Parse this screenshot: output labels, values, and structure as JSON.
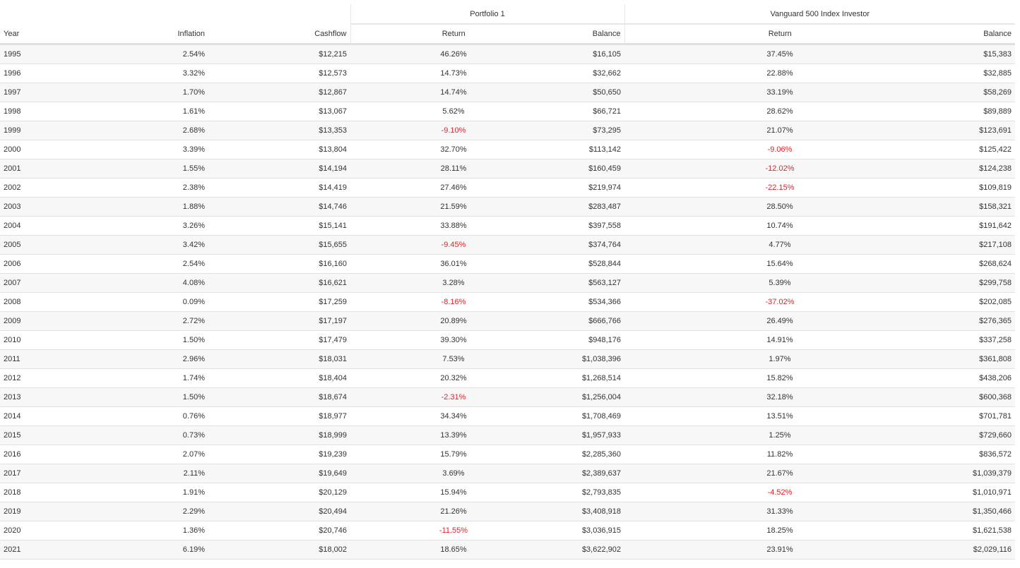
{
  "table": {
    "groups": [
      "Portfolio 1",
      "Vanguard 500 Index Investor"
    ],
    "columns": [
      "Year",
      "Inflation",
      "Cashflow",
      "Return",
      "Balance",
      "Return",
      "Balance"
    ],
    "rows": [
      [
        "1995",
        "2.54%",
        "$12,215",
        "46.26%",
        "$16,105",
        "37.45%",
        "$15,383"
      ],
      [
        "1996",
        "3.32%",
        "$12,573",
        "14.73%",
        "$32,662",
        "22.88%",
        "$32,885"
      ],
      [
        "1997",
        "1.70%",
        "$12,867",
        "14.74%",
        "$50,650",
        "33.19%",
        "$58,269"
      ],
      [
        "1998",
        "1.61%",
        "$13,067",
        "5.62%",
        "$66,721",
        "28.62%",
        "$89,889"
      ],
      [
        "1999",
        "2.68%",
        "$13,353",
        "-9.10%",
        "$73,295",
        "21.07%",
        "$123,691"
      ],
      [
        "2000",
        "3.39%",
        "$13,804",
        "32.70%",
        "$113,142",
        "-9.06%",
        "$125,422"
      ],
      [
        "2001",
        "1.55%",
        "$14,194",
        "28.11%",
        "$160,459",
        "-12.02%",
        "$124,238"
      ],
      [
        "2002",
        "2.38%",
        "$14,419",
        "27.46%",
        "$219,974",
        "-22.15%",
        "$109,819"
      ],
      [
        "2003",
        "1.88%",
        "$14,746",
        "21.59%",
        "$283,487",
        "28.50%",
        "$158,321"
      ],
      [
        "2004",
        "3.26%",
        "$15,141",
        "33.88%",
        "$397,558",
        "10.74%",
        "$191,642"
      ],
      [
        "2005",
        "3.42%",
        "$15,655",
        "-9.45%",
        "$374,764",
        "4.77%",
        "$217,108"
      ],
      [
        "2006",
        "2.54%",
        "$16,160",
        "36.01%",
        "$528,844",
        "15.64%",
        "$268,624"
      ],
      [
        "2007",
        "4.08%",
        "$16,621",
        "3.28%",
        "$563,127",
        "5.39%",
        "$299,758"
      ],
      [
        "2008",
        "0.09%",
        "$17,259",
        "-8.16%",
        "$534,366",
        "-37.02%",
        "$202,085"
      ],
      [
        "2009",
        "2.72%",
        "$17,197",
        "20.89%",
        "$666,766",
        "26.49%",
        "$276,365"
      ],
      [
        "2010",
        "1.50%",
        "$17,479",
        "39.30%",
        "$948,176",
        "14.91%",
        "$337,258"
      ],
      [
        "2011",
        "2.96%",
        "$18,031",
        "7.53%",
        "$1,038,396",
        "1.97%",
        "$361,808"
      ],
      [
        "2012",
        "1.74%",
        "$18,404",
        "20.32%",
        "$1,268,514",
        "15.82%",
        "$438,206"
      ],
      [
        "2013",
        "1.50%",
        "$18,674",
        "-2.31%",
        "$1,256,004",
        "32.18%",
        "$600,368"
      ],
      [
        "2014",
        "0.76%",
        "$18,977",
        "34.34%",
        "$1,708,469",
        "13.51%",
        "$701,781"
      ],
      [
        "2015",
        "0.73%",
        "$18,999",
        "13.39%",
        "$1,957,933",
        "1.25%",
        "$729,660"
      ],
      [
        "2016",
        "2.07%",
        "$19,239",
        "15.79%",
        "$2,285,360",
        "11.82%",
        "$836,572"
      ],
      [
        "2017",
        "2.11%",
        "$19,649",
        "3.69%",
        "$2,389,637",
        "21.67%",
        "$1,039,379"
      ],
      [
        "2018",
        "1.91%",
        "$20,129",
        "15.94%",
        "$2,793,835",
        "-4.52%",
        "$1,010,971"
      ],
      [
        "2019",
        "2.29%",
        "$20,494",
        "21.26%",
        "$3,408,918",
        "31.33%",
        "$1,350,466"
      ],
      [
        "2020",
        "1.36%",
        "$20,746",
        "-11.55%",
        "$3,036,915",
        "18.25%",
        "$1,621,538"
      ],
      [
        "2021",
        "6.19%",
        "$18,002",
        "18.65%",
        "$3,622,902",
        "23.91%",
        "$2,029,116"
      ]
    ]
  }
}
